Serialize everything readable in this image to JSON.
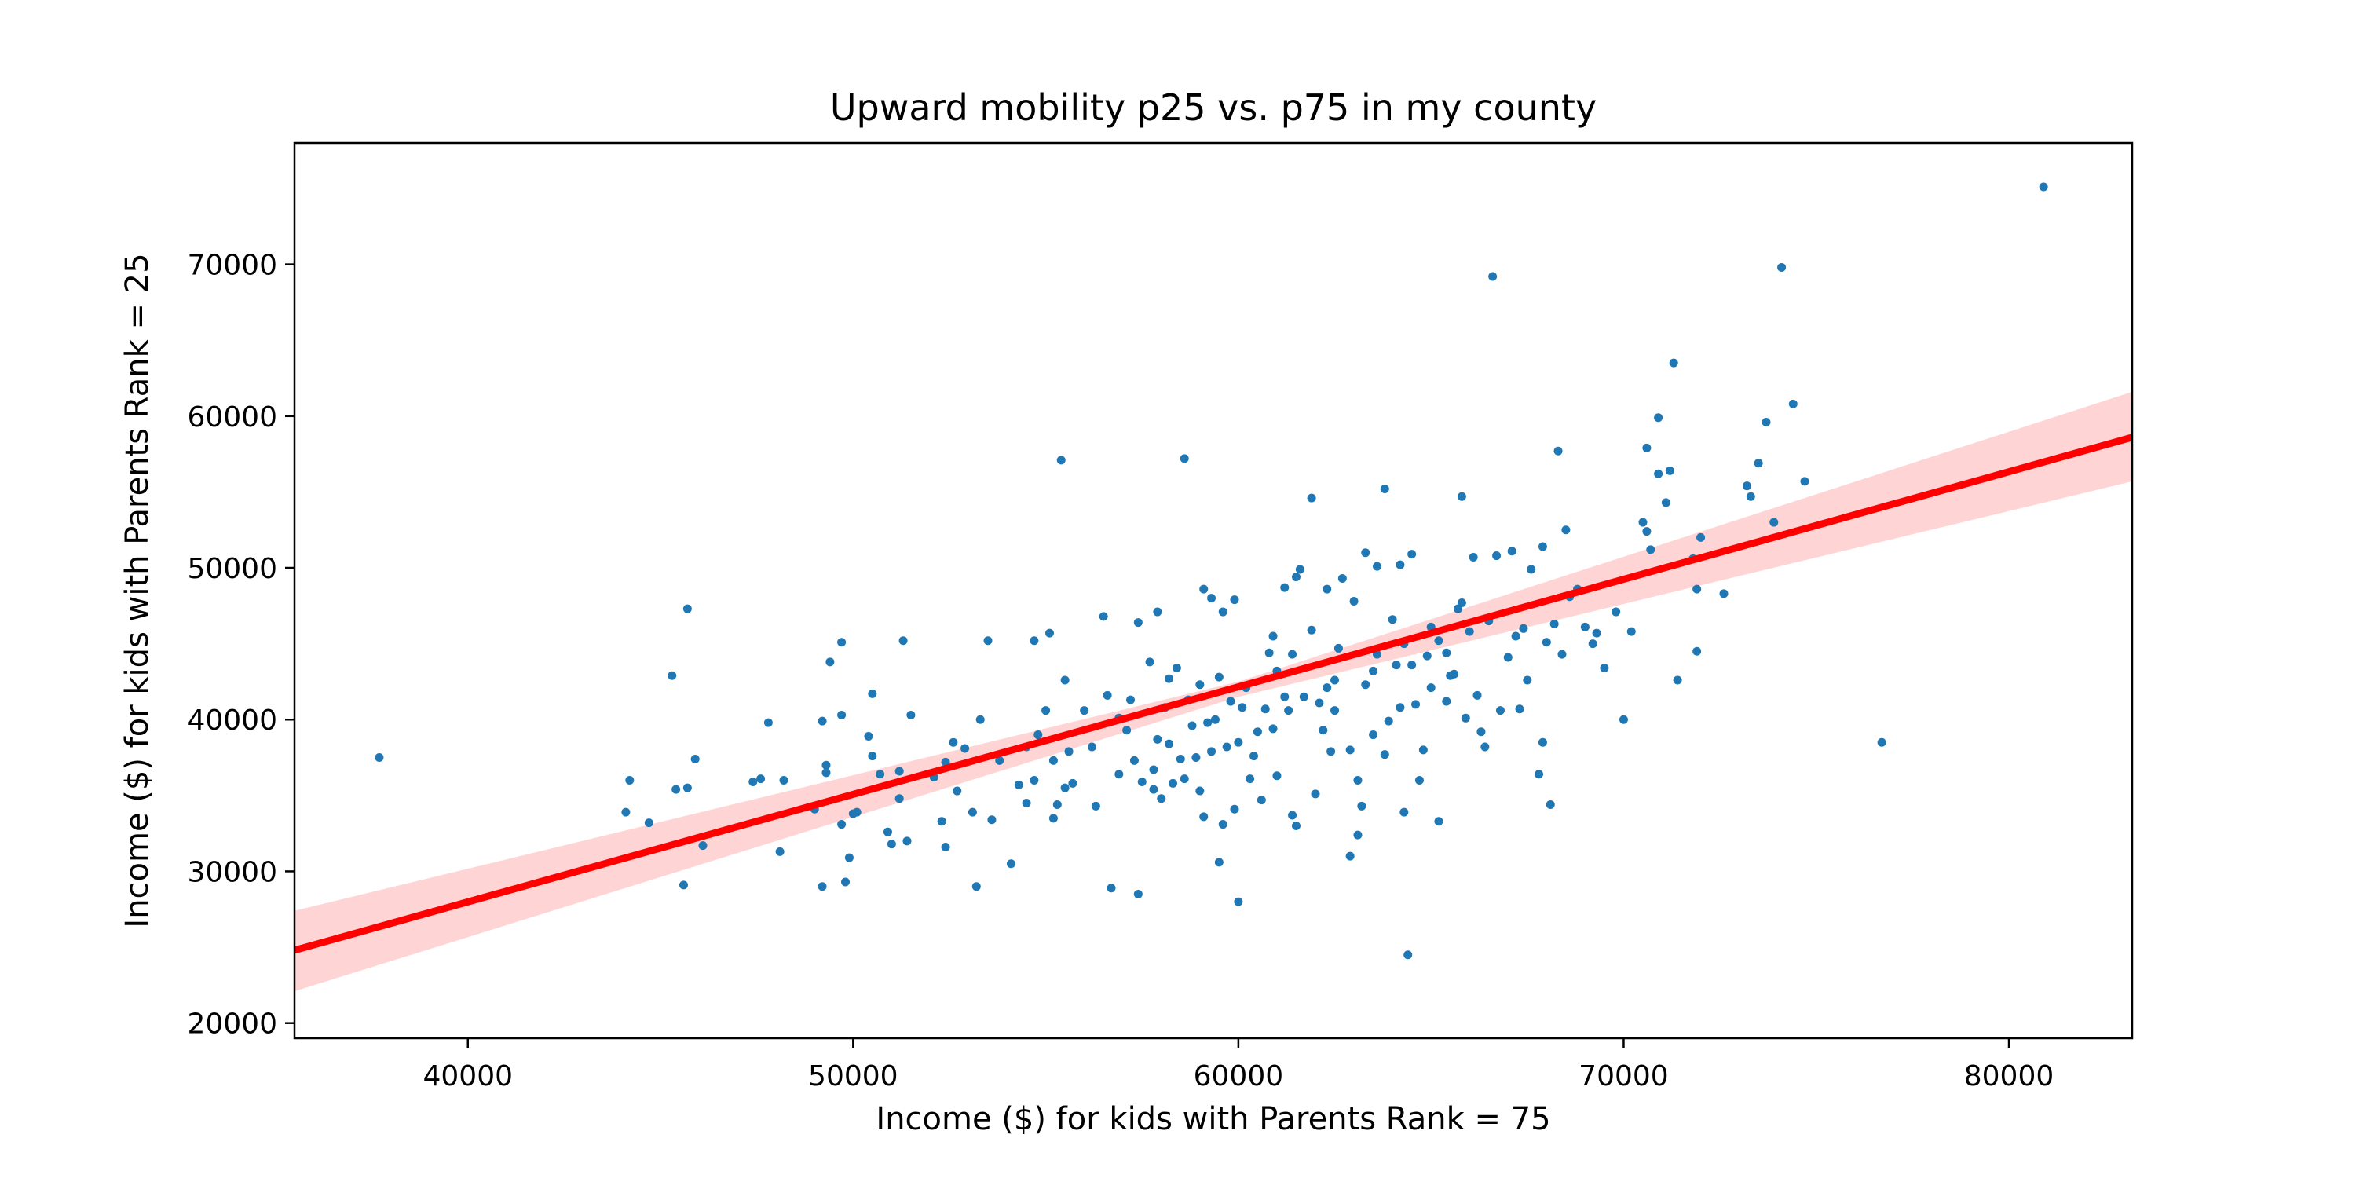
{
  "chart_data": {
    "type": "scatter",
    "title": "Upward mobility p25 vs. p75 in my county",
    "xlabel": "Income ($) for kids with Parents Rank = 75",
    "ylabel": "Income ($) for kids with Parents Rank = 25",
    "xlim": [
      35500,
      83200
    ],
    "ylim": [
      19000,
      78000
    ],
    "xticks": [
      40000,
      50000,
      60000,
      70000,
      80000
    ],
    "yticks": [
      20000,
      30000,
      40000,
      50000,
      60000,
      70000
    ],
    "xtick_labels": [
      "40000",
      "50000",
      "60000",
      "70000",
      "80000"
    ],
    "ytick_labels": [
      "20000",
      "30000",
      "40000",
      "50000",
      "60000",
      "70000"
    ],
    "grid": false,
    "colors": {
      "points": "#1f77b4",
      "regression_line": "#ff0000",
      "confidence_band": "#ffcccc",
      "axes": "#000000"
    },
    "series": [
      {
        "type": "scatter",
        "points": [
          [
            37700,
            37500
          ],
          [
            44200,
            36000
          ],
          [
            44100,
            33900
          ],
          [
            44700,
            33200
          ],
          [
            45400,
            35400
          ],
          [
            45300,
            42900
          ],
          [
            45700,
            47300
          ],
          [
            45700,
            35500
          ],
          [
            45600,
            29100
          ],
          [
            45900,
            37400
          ],
          [
            46100,
            31700
          ],
          [
            47400,
            35900
          ],
          [
            47600,
            36100
          ],
          [
            47800,
            39800
          ],
          [
            48100,
            31300
          ],
          [
            48200,
            36000
          ],
          [
            49000,
            34100
          ],
          [
            49200,
            39900
          ],
          [
            49300,
            37000
          ],
          [
            49300,
            36500
          ],
          [
            49200,
            29000
          ],
          [
            49400,
            43800
          ],
          [
            49700,
            40300
          ],
          [
            49700,
            45100
          ],
          [
            49700,
            33100
          ],
          [
            49800,
            29300
          ],
          [
            49900,
            30900
          ],
          [
            50000,
            33800
          ],
          [
            50100,
            33900
          ],
          [
            50400,
            38900
          ],
          [
            50500,
            37600
          ],
          [
            50500,
            41700
          ],
          [
            50700,
            36400
          ],
          [
            50900,
            32600
          ],
          [
            51000,
            31800
          ],
          [
            51200,
            34800
          ],
          [
            51200,
            36600
          ],
          [
            51300,
            45200
          ],
          [
            51400,
            32000
          ],
          [
            51500,
            40300
          ],
          [
            52100,
            36200
          ],
          [
            52400,
            37200
          ],
          [
            52300,
            33300
          ],
          [
            52400,
            31600
          ],
          [
            52600,
            38500
          ],
          [
            52700,
            35300
          ],
          [
            52900,
            38100
          ],
          [
            53100,
            33900
          ],
          [
            53200,
            29000
          ],
          [
            53300,
            40000
          ],
          [
            53500,
            45200
          ],
          [
            53600,
            33400
          ],
          [
            53800,
            37300
          ],
          [
            54100,
            30500
          ],
          [
            54300,
            35700
          ],
          [
            54500,
            34500
          ],
          [
            54500,
            38200
          ],
          [
            54700,
            36000
          ],
          [
            54700,
            45200
          ],
          [
            54800,
            39000
          ],
          [
            55000,
            40600
          ],
          [
            55100,
            45700
          ],
          [
            55200,
            33500
          ],
          [
            55200,
            37300
          ],
          [
            55300,
            34400
          ],
          [
            55400,
            57100
          ],
          [
            55500,
            42600
          ],
          [
            55500,
            35500
          ],
          [
            55600,
            37900
          ],
          [
            55700,
            35800
          ],
          [
            56000,
            40600
          ],
          [
            56200,
            38200
          ],
          [
            56300,
            34300
          ],
          [
            56500,
            46800
          ],
          [
            56600,
            41600
          ],
          [
            56700,
            28900
          ],
          [
            56900,
            36400
          ],
          [
            56900,
            40100
          ],
          [
            57100,
            39300
          ],
          [
            57200,
            41300
          ],
          [
            57300,
            37300
          ],
          [
            57400,
            46400
          ],
          [
            57400,
            28500
          ],
          [
            57500,
            35900
          ],
          [
            57700,
            43800
          ],
          [
            57800,
            36700
          ],
          [
            57800,
            35400
          ],
          [
            57900,
            47100
          ],
          [
            57900,
            38700
          ],
          [
            58000,
            34800
          ],
          [
            58100,
            40800
          ],
          [
            58200,
            42700
          ],
          [
            58200,
            38400
          ],
          [
            58300,
            35800
          ],
          [
            58400,
            43400
          ],
          [
            58500,
            37400
          ],
          [
            58600,
            57200
          ],
          [
            58600,
            36100
          ],
          [
            58700,
            41300
          ],
          [
            58800,
            39600
          ],
          [
            58900,
            37500
          ],
          [
            59000,
            42300
          ],
          [
            59000,
            35300
          ],
          [
            59100,
            48600
          ],
          [
            59100,
            33600
          ],
          [
            59200,
            39800
          ],
          [
            59300,
            37900
          ],
          [
            59300,
            48000
          ],
          [
            59400,
            40000
          ],
          [
            59500,
            30600
          ],
          [
            59500,
            42800
          ],
          [
            59600,
            47100
          ],
          [
            59600,
            33100
          ],
          [
            59700,
            38200
          ],
          [
            59800,
            41200
          ],
          [
            59900,
            47900
          ],
          [
            59900,
            34100
          ],
          [
            60000,
            38500
          ],
          [
            60000,
            28000
          ],
          [
            60100,
            40800
          ],
          [
            60200,
            42100
          ],
          [
            60300,
            36100
          ],
          [
            60400,
            37600
          ],
          [
            60500,
            39200
          ],
          [
            60600,
            34700
          ],
          [
            60700,
            40700
          ],
          [
            60800,
            44400
          ],
          [
            60900,
            39400
          ],
          [
            60900,
            45500
          ],
          [
            61000,
            43200
          ],
          [
            61000,
            36300
          ],
          [
            61200,
            41500
          ],
          [
            61200,
            48700
          ],
          [
            61300,
            40600
          ],
          [
            61400,
            44300
          ],
          [
            61400,
            33700
          ],
          [
            61500,
            49400
          ],
          [
            61500,
            33000
          ],
          [
            61600,
            49900
          ],
          [
            61700,
            41500
          ],
          [
            61900,
            45900
          ],
          [
            61900,
            54600
          ],
          [
            62000,
            35100
          ],
          [
            62100,
            41100
          ],
          [
            62200,
            39300
          ],
          [
            62300,
            42100
          ],
          [
            62300,
            48600
          ],
          [
            62400,
            37900
          ],
          [
            62500,
            42600
          ],
          [
            62500,
            40600
          ],
          [
            62600,
            44700
          ],
          [
            62700,
            49300
          ],
          [
            62900,
            38000
          ],
          [
            62900,
            31000
          ],
          [
            63000,
            47800
          ],
          [
            63100,
            36000
          ],
          [
            63100,
            32400
          ],
          [
            63200,
            34300
          ],
          [
            63300,
            42300
          ],
          [
            63300,
            51000
          ],
          [
            63500,
            43200
          ],
          [
            63500,
            39000
          ],
          [
            63600,
            50100
          ],
          [
            63600,
            44300
          ],
          [
            63800,
            55200
          ],
          [
            63800,
            37700
          ],
          [
            63900,
            39900
          ],
          [
            64000,
            46600
          ],
          [
            64100,
            43600
          ],
          [
            64200,
            40800
          ],
          [
            64200,
            50200
          ],
          [
            64300,
            33900
          ],
          [
            64300,
            45000
          ],
          [
            64400,
            24500
          ],
          [
            64500,
            50900
          ],
          [
            64500,
            43600
          ],
          [
            64600,
            41000
          ],
          [
            64700,
            36000
          ],
          [
            64800,
            38000
          ],
          [
            64900,
            44200
          ],
          [
            65000,
            42100
          ],
          [
            65000,
            46100
          ],
          [
            65200,
            33300
          ],
          [
            65200,
            45200
          ],
          [
            65400,
            44400
          ],
          [
            65400,
            41200
          ],
          [
            65500,
            42900
          ],
          [
            65600,
            43000
          ],
          [
            65700,
            47300
          ],
          [
            65800,
            47700
          ],
          [
            65800,
            54700
          ],
          [
            65900,
            40100
          ],
          [
            66000,
            45800
          ],
          [
            66100,
            50700
          ],
          [
            66200,
            41600
          ],
          [
            66300,
            39200
          ],
          [
            66400,
            38200
          ],
          [
            66500,
            46500
          ],
          [
            66600,
            69200
          ],
          [
            66700,
            50800
          ],
          [
            66800,
            40600
          ],
          [
            67000,
            44100
          ],
          [
            67100,
            51100
          ],
          [
            67200,
            45500
          ],
          [
            67300,
            40700
          ],
          [
            67400,
            46000
          ],
          [
            67500,
            42600
          ],
          [
            67600,
            49900
          ],
          [
            67800,
            36400
          ],
          [
            67900,
            38500
          ],
          [
            67900,
            51400
          ],
          [
            68000,
            45100
          ],
          [
            68100,
            34400
          ],
          [
            68200,
            46300
          ],
          [
            68300,
            57700
          ],
          [
            68400,
            44300
          ],
          [
            68500,
            52500
          ],
          [
            68600,
            48100
          ],
          [
            68800,
            48600
          ],
          [
            69000,
            46100
          ],
          [
            69200,
            45000
          ],
          [
            69300,
            45700
          ],
          [
            69500,
            43400
          ],
          [
            69800,
            47100
          ],
          [
            70000,
            40000
          ],
          [
            70200,
            45800
          ],
          [
            70500,
            53000
          ],
          [
            70600,
            52400
          ],
          [
            70600,
            57900
          ],
          [
            70700,
            51200
          ],
          [
            70900,
            59900
          ],
          [
            70900,
            56200
          ],
          [
            71100,
            54300
          ],
          [
            71200,
            56400
          ],
          [
            71300,
            63500
          ],
          [
            71400,
            42600
          ],
          [
            71800,
            50600
          ],
          [
            71900,
            48600
          ],
          [
            71900,
            44500
          ],
          [
            72000,
            52000
          ],
          [
            72600,
            48300
          ],
          [
            73200,
            55400
          ],
          [
            73300,
            54700
          ],
          [
            73500,
            56900
          ],
          [
            73700,
            59600
          ],
          [
            73900,
            53000
          ],
          [
            74100,
            69800
          ],
          [
            74400,
            60800
          ],
          [
            74700,
            55700
          ],
          [
            76700,
            38500
          ],
          [
            80900,
            75100
          ]
        ]
      },
      {
        "type": "line",
        "points": [
          [
            35500,
            24800
          ],
          [
            83200,
            58600
          ]
        ]
      },
      {
        "type": "band",
        "upper": [
          [
            35500,
            27400
          ],
          [
            60000,
            42500
          ],
          [
            83200,
            61600
          ]
        ],
        "lower": [
          [
            35500,
            22100
          ],
          [
            60000,
            41500
          ],
          [
            83200,
            55700
          ]
        ]
      }
    ]
  }
}
